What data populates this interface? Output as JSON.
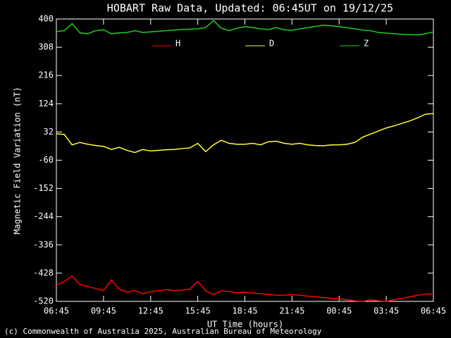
{
  "chart_data": {
    "type": "line",
    "title": "HOBART Raw Data, Updated: 06:45UT on 19/12/25",
    "ylabel": "Magnetic Field Variation (nT)",
    "xlabel": "UT Time (hours)",
    "footer": "(c) Commonwealth of Australia 2025, Australian Bureau of Meteorology",
    "x": [
      0,
      0.5,
      1,
      1.5,
      2,
      2.5,
      3,
      3.5,
      4,
      4.5,
      5,
      5.5,
      6,
      6.5,
      7,
      7.5,
      8,
      8.5,
      9,
      9.5,
      10,
      10.5,
      11,
      11.5,
      12,
      12.5,
      13,
      13.5,
      14,
      14.5,
      15,
      15.5,
      16,
      16.5,
      17,
      17.5,
      18,
      18.5,
      19,
      19.5,
      20,
      20.5,
      21,
      21.5,
      22,
      22.5,
      23,
      23.5,
      24
    ],
    "xlim": [
      0,
      24
    ],
    "xticks": [
      {
        "value": 0,
        "label": "06:45"
      },
      {
        "value": 3,
        "label": "09:45"
      },
      {
        "value": 6,
        "label": "12:45"
      },
      {
        "value": 9,
        "label": "15:45"
      },
      {
        "value": 12,
        "label": "18:45"
      },
      {
        "value": 15,
        "label": "21:45"
      },
      {
        "value": 18,
        "label": "00:45"
      },
      {
        "value": 21,
        "label": "03:45"
      },
      {
        "value": 24,
        "label": "06:45"
      }
    ],
    "ylim": [
      -520,
      400
    ],
    "yticks": [
      400,
      308,
      216,
      124,
      32,
      -60,
      -152,
      -244,
      -336,
      -428,
      -520
    ],
    "series": [
      {
        "name": "H",
        "color": "#ff0000",
        "values": [
          -467,
          -455,
          -437,
          -465,
          -472,
          -478,
          -485,
          -450,
          -480,
          -490,
          -485,
          -495,
          -488,
          -485,
          -482,
          -485,
          -483,
          -480,
          -455,
          -485,
          -498,
          -485,
          -488,
          -492,
          -490,
          -493,
          -495,
          -497,
          -500,
          -500,
          -498,
          -500,
          -503,
          -505,
          -508,
          -510,
          -512,
          -515,
          -518,
          -520,
          -515,
          -518,
          -520,
          -515,
          -510,
          -505,
          -500,
          -497,
          -495
        ]
      },
      {
        "name": "D",
        "color": "#ffff33",
        "values": [
          26,
          24,
          -10,
          -2,
          -8,
          -12,
          -15,
          -25,
          -18,
          -28,
          -35,
          -25,
          -30,
          -28,
          -26,
          -25,
          -22,
          -20,
          -5,
          -32,
          -10,
          5,
          -5,
          -8,
          -8,
          -5,
          -10,
          0,
          2,
          -5,
          -8,
          -5,
          -10,
          -12,
          -13,
          -10,
          -10,
          -8,
          -2,
          15,
          25,
          35,
          45,
          52,
          60,
          68,
          78,
          90,
          92
        ]
      },
      {
        "name": "Z",
        "color": "#22cc22",
        "values": [
          359,
          362,
          385,
          355,
          352,
          362,
          365,
          352,
          355,
          356,
          362,
          356,
          358,
          360,
          362,
          364,
          366,
          367,
          368,
          372,
          395,
          370,
          362,
          370,
          375,
          372,
          368,
          366,
          372,
          365,
          363,
          368,
          372,
          376,
          380,
          378,
          375,
          372,
          368,
          364,
          362,
          356,
          354,
          352,
          350,
          349,
          348,
          352,
          358
        ]
      }
    ]
  }
}
